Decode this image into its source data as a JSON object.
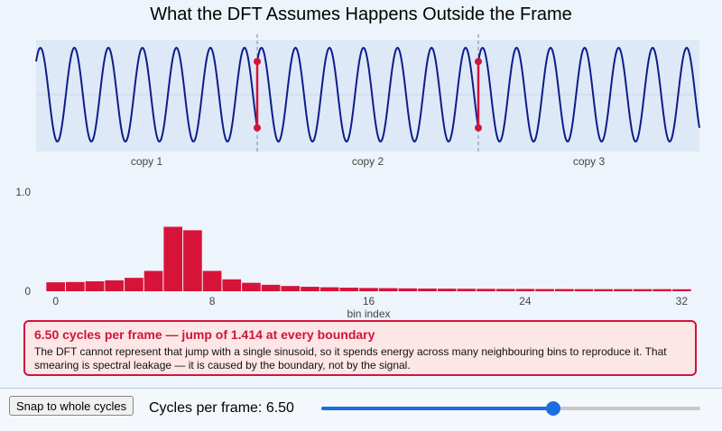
{
  "title": "What the DFT Assumes Happens Outside the Frame",
  "wave": {
    "copies": [
      "copy 1",
      "copy 2",
      "copy 3"
    ],
    "cycles_per_frame": 6.5,
    "amplitude": 1,
    "jump": 1.414,
    "colors": {
      "wave": "#0f1c8a",
      "jump": "#d0143c",
      "frame_bg": "#dde9f7",
      "divider": "#8d97b5"
    }
  },
  "chart_data": {
    "type": "bar",
    "title": "",
    "xlabel": "bin index",
    "ylabel": "",
    "ylim": [
      0,
      1
    ],
    "xlim": [
      -1,
      33
    ],
    "y_ticks": [
      "0",
      "1.0"
    ],
    "x_ticks": [
      0,
      8,
      16,
      24,
      32
    ],
    "categories": [
      0,
      1,
      2,
      3,
      4,
      5,
      6,
      7,
      8,
      9,
      10,
      11,
      12,
      13,
      14,
      15,
      16,
      17,
      18,
      19,
      20,
      21,
      22,
      23,
      24,
      25,
      26,
      27,
      28,
      29,
      30,
      31,
      32
    ],
    "values": [
      0.09,
      0.093,
      0.1,
      0.11,
      0.135,
      0.205,
      0.65,
      0.615,
      0.205,
      0.12,
      0.085,
      0.065,
      0.053,
      0.045,
      0.04,
      0.036,
      0.033,
      0.031,
      0.029,
      0.027,
      0.026,
      0.025,
      0.024,
      0.023,
      0.023,
      0.022,
      0.022,
      0.021,
      0.021,
      0.021,
      0.021,
      0.021,
      0.02
    ],
    "bar_color": "#d8133a"
  },
  "callout": {
    "headline": "6.50 cycles per frame — jump of 1.414 at every boundary",
    "body": "The DFT cannot represent that jump with a single sinusoid, so it spends energy across many neighbouring bins to reproduce it. That smearing is spectral leakage — it is caused by the boundary, not by the signal."
  },
  "controls": {
    "snap_label": "Snap to whole cycles",
    "cycles_label": "Cycles per frame: 6.50",
    "slider_value": 6.5,
    "slider_min": 1,
    "slider_max": 10
  }
}
